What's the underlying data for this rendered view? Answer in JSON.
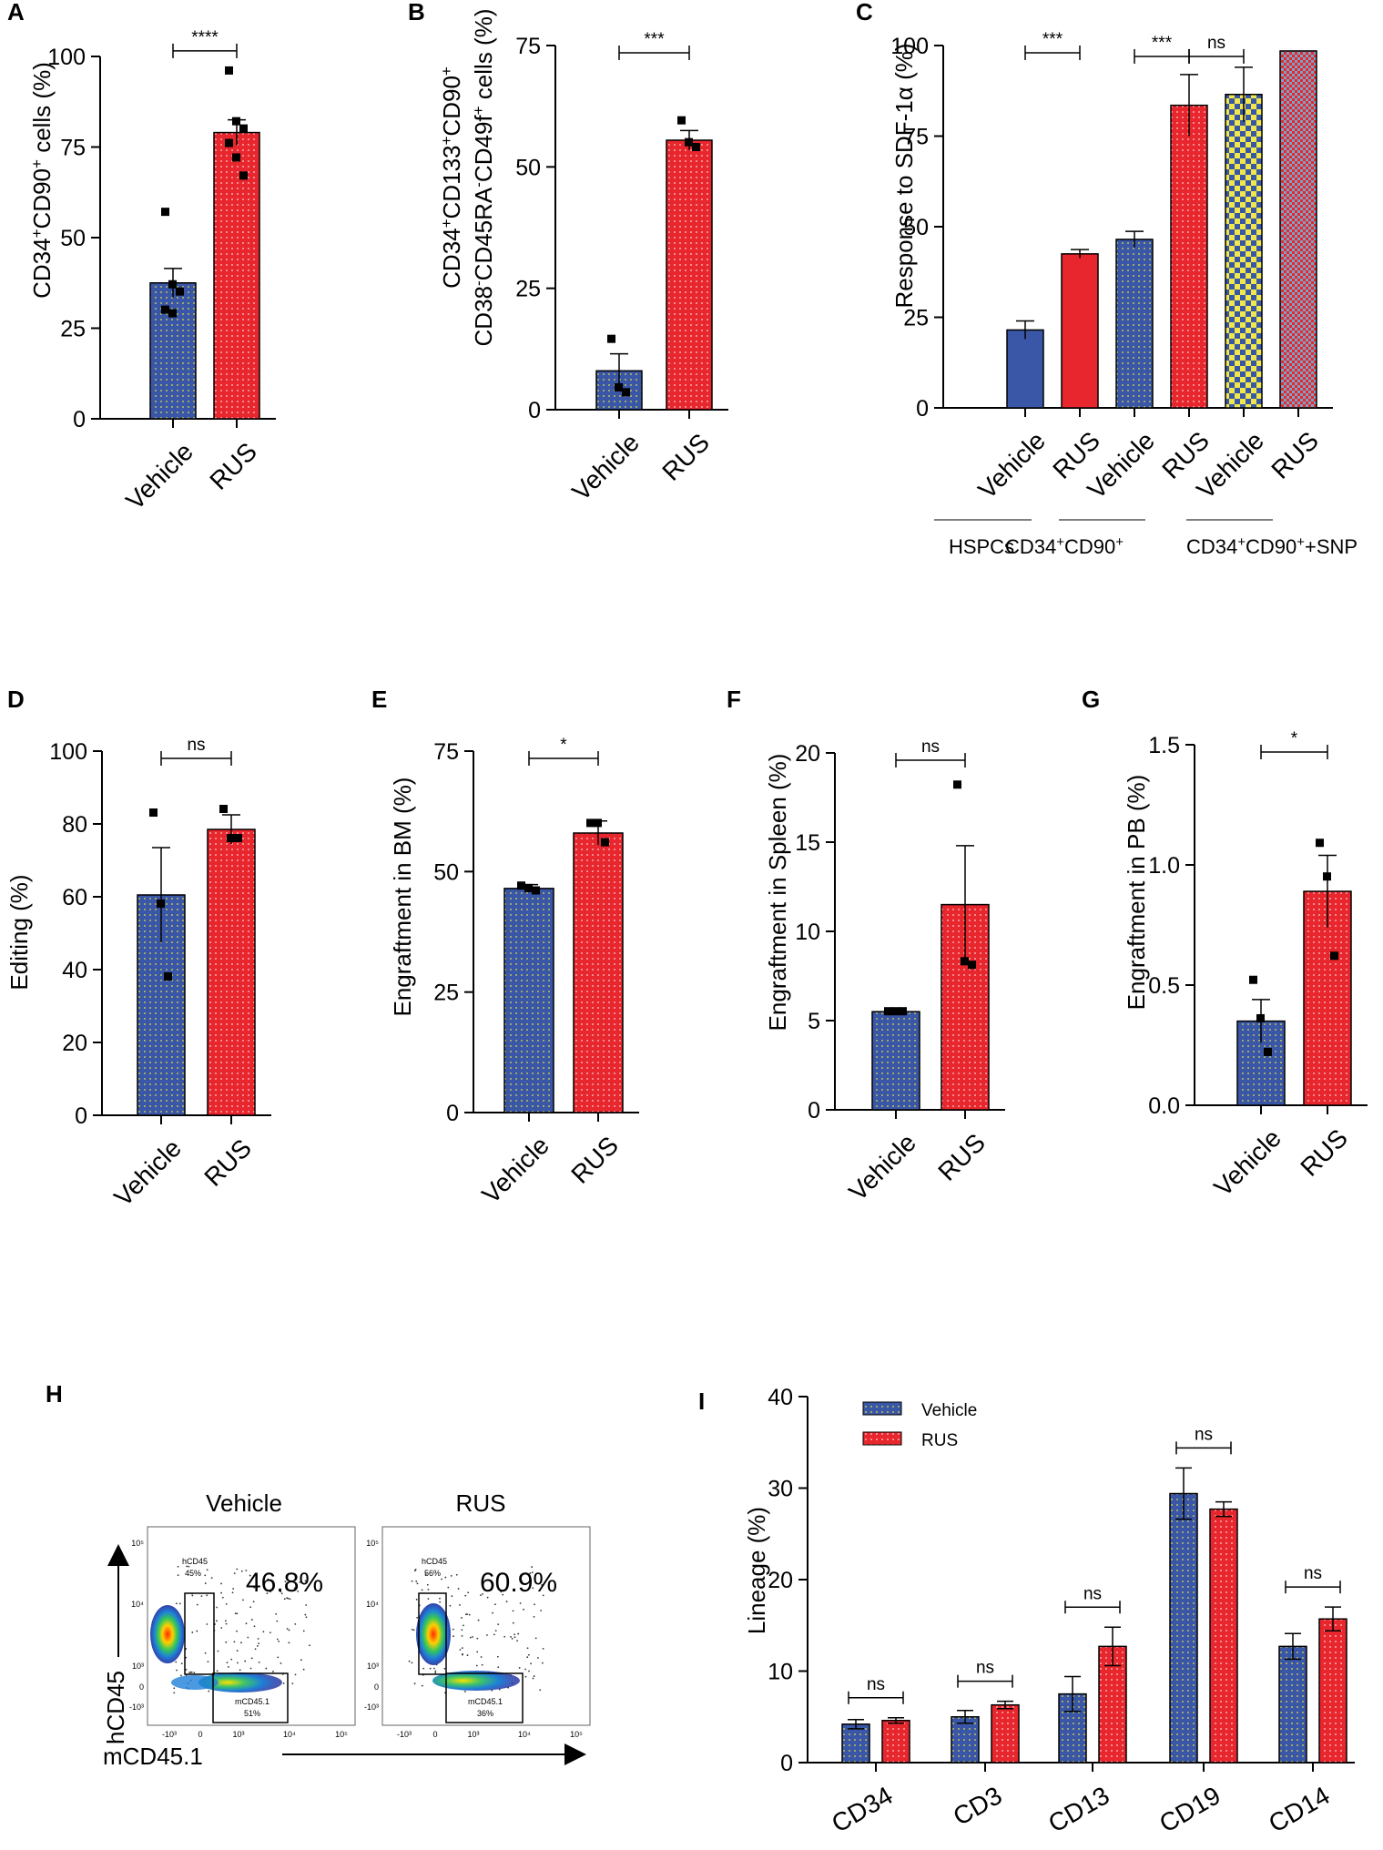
{
  "colors": {
    "vehicle": "#3a56a6",
    "rus": "#e8262d",
    "snp_dots": "#f0e84a",
    "rus_snp_pattern": "#7aa3c8",
    "axis": "#000000"
  },
  "chart_data": [
    {
      "panel": "A",
      "type": "bar",
      "ylabel_parts": [
        "CD34",
        "+",
        "CD90",
        "+",
        " cells (%)"
      ],
      "ylim": [
        0,
        100
      ],
      "yticks": [
        0,
        25,
        50,
        75,
        100
      ],
      "categories": [
        "Vehicle",
        "RUS"
      ],
      "values": [
        37.5,
        79
      ],
      "errors": [
        4,
        3.5
      ],
      "points": [
        [
          57,
          37,
          35,
          30,
          29
        ],
        [
          96,
          82,
          80,
          76,
          72,
          67
        ]
      ],
      "significance": [
        {
          "between": [
            0,
            1
          ],
          "label": "****"
        }
      ]
    },
    {
      "panel": "B",
      "type": "bar",
      "ylabel_lines": [
        [
          "CD34",
          "+",
          "CD133",
          "+",
          "CD90",
          "+"
        ],
        [
          "CD38",
          "-",
          "CD45RA",
          "-",
          "CD49f",
          "+",
          " cells (%)"
        ]
      ],
      "ylim": [
        0,
        75
      ],
      "yticks": [
        0,
        25,
        50,
        75
      ],
      "categories": [
        "Vehicle",
        "RUS"
      ],
      "values": [
        8,
        55.5
      ],
      "errors": [
        3.5,
        2
      ],
      "points": [
        [
          14.5,
          4.5,
          3.5
        ],
        [
          59.5,
          55,
          54
        ]
      ],
      "significance": [
        {
          "between": [
            0,
            1
          ],
          "label": "***"
        }
      ]
    },
    {
      "panel": "C",
      "type": "bar",
      "ylabel": "Response to SDF-1α (%)",
      "ylim": [
        0,
        100
      ],
      "yticks": [
        0,
        25,
        50,
        75,
        100
      ],
      "categories": [
        "Vehicle",
        "RUS",
        "Vehicle",
        "RUS",
        "Vehicle",
        "RUS"
      ],
      "values": [
        21.5,
        42.5,
        46.5,
        83.5,
        86.5,
        98.5
      ],
      "errors": [
        2.5,
        1.2,
        2.2,
        8.5,
        7.5,
        0
      ],
      "groups": [
        "HSPCs",
        "CD34+CD90+",
        "CD34+CD90++SNP"
      ],
      "significance": [
        {
          "between": [
            0,
            1
          ],
          "label": "***"
        },
        {
          "between": [
            2,
            3
          ],
          "label": "***"
        },
        {
          "between": [
            3,
            4
          ],
          "label": "ns"
        }
      ]
    },
    {
      "panel": "D",
      "type": "bar",
      "ylabel": "Editing (%)",
      "ylim": [
        0,
        100
      ],
      "yticks": [
        0,
        20,
        40,
        60,
        80,
        100
      ],
      "categories": [
        "Vehicle",
        "RUS"
      ],
      "values": [
        60.5,
        78.5
      ],
      "errors": [
        13,
        4
      ],
      "points": [
        [
          83,
          58,
          38
        ],
        [
          84,
          76,
          76
        ]
      ],
      "significance": [
        {
          "between": [
            0,
            1
          ],
          "label": "ns"
        }
      ]
    },
    {
      "panel": "E",
      "type": "bar",
      "ylabel": "Engraftment in BM (%)",
      "ylim": [
        0,
        75
      ],
      "yticks": [
        0,
        25,
        50,
        75
      ],
      "categories": [
        "Vehicle",
        "RUS"
      ],
      "values": [
        46.5,
        58
      ],
      "errors": [
        0.8,
        2.5
      ],
      "points": [
        [
          47,
          46.5,
          46
        ],
        [
          60,
          60,
          56
        ]
      ],
      "significance": [
        {
          "between": [
            0,
            1
          ],
          "label": "*"
        }
      ]
    },
    {
      "panel": "F",
      "type": "bar",
      "ylabel": "Engraftment in Spleen (%)",
      "ylim": [
        0,
        20
      ],
      "yticks": [
        0,
        5,
        10,
        15,
        20
      ],
      "categories": [
        "Vehicle",
        "RUS"
      ],
      "values": [
        5.5,
        11.5
      ],
      "errors": [
        0.1,
        3.3
      ],
      "points": [
        [
          5.5,
          5.5,
          5.5
        ],
        [
          18.2,
          8.3,
          8.1
        ]
      ],
      "significance": [
        {
          "between": [
            0,
            1
          ],
          "label": "ns"
        }
      ]
    },
    {
      "panel": "G",
      "type": "bar",
      "ylabel": "Engraftment in PB (%)",
      "ylim": [
        0,
        1.5
      ],
      "yticks": [
        0,
        0.5,
        1.0,
        1.5
      ],
      "ytick_labels": [
        "0.0",
        "0.5",
        "1.0",
        "1.5"
      ],
      "categories": [
        "Vehicle",
        "RUS"
      ],
      "values": [
        0.35,
        0.89
      ],
      "errors": [
        0.09,
        0.15
      ],
      "points": [
        [
          0.52,
          0.36,
          0.22
        ],
        [
          1.09,
          0.95,
          0.62
        ]
      ],
      "significance": [
        {
          "between": [
            0,
            1
          ],
          "label": "*"
        }
      ]
    },
    {
      "panel": "I",
      "type": "bar",
      "ylabel": "Lineage (%)",
      "ylim": [
        0,
        40
      ],
      "yticks": [
        0,
        10,
        20,
        30,
        40
      ],
      "categories": [
        "CD34",
        "CD3",
        "CD13",
        "CD19",
        "CD14"
      ],
      "series": [
        {
          "name": "Vehicle",
          "values": [
            4.2,
            5.0,
            7.5,
            29.4,
            12.7
          ],
          "errors": [
            0.5,
            0.7,
            1.9,
            2.8,
            1.4
          ]
        },
        {
          "name": "RUS",
          "values": [
            4.6,
            6.3,
            12.7,
            27.7,
            15.7
          ],
          "errors": [
            0.3,
            0.4,
            2.1,
            0.8,
            1.3
          ]
        }
      ],
      "significance_label": "ns",
      "legend": "top-left"
    }
  ],
  "flow_panel": {
    "panel": "H",
    "xlabel": "mCD45.1",
    "ylabel": "hCD45",
    "plots": [
      {
        "title": "Vehicle",
        "percent": "46.8%",
        "gate_top": "hCD45",
        "gate_top_pct": "45%",
        "gate_bottom": "mCD45.1",
        "gate_bottom_pct": "51%"
      },
      {
        "title": "RUS",
        "percent": "60.9%",
        "gate_top": "hCD45",
        "gate_top_pct": "56%",
        "gate_bottom": "mCD45.1",
        "gate_bottom_pct": "36%"
      }
    ],
    "y_ticks": [
      "10⁵",
      "10⁴",
      "10³",
      "0",
      "-10³"
    ],
    "x_ticks": [
      "-10³",
      "0",
      "10³",
      "10⁴",
      "10⁵"
    ]
  }
}
